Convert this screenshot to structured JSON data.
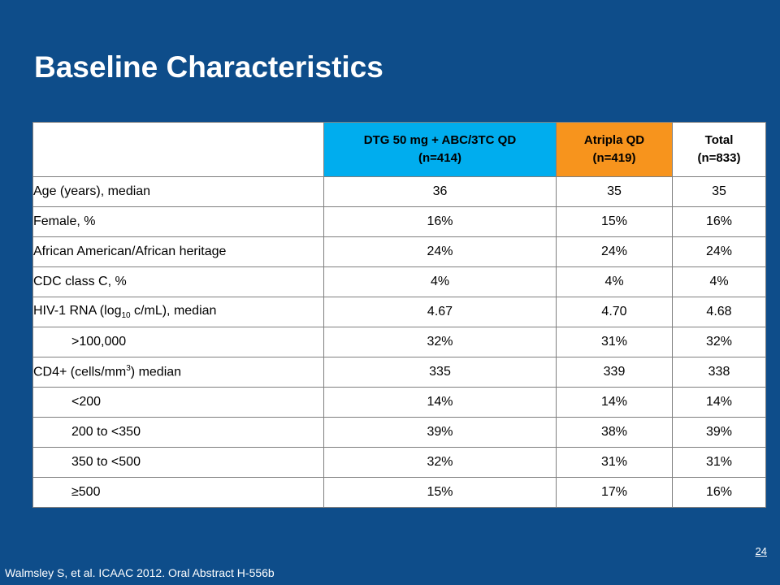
{
  "slide": {
    "title": "Baseline Characteristics",
    "footer": "Walmsley S, et al. ICAAC 2012. Oral Abstract H-556b",
    "page_number": "24"
  },
  "table": {
    "headers": [
      {
        "line1": "DTG 50 mg + ABC/3TC QD",
        "line2": "(n=414)"
      },
      {
        "line1": "Atripla QD",
        "line2": "(n=419)"
      },
      {
        "line1": "Total",
        "line2": "(n=833)"
      }
    ],
    "rows": [
      {
        "label": "Age (years), median",
        "values": [
          "36",
          "35",
          "35"
        ]
      },
      {
        "label": "Female, %",
        "values": [
          "16%",
          "15%",
          "16%"
        ]
      },
      {
        "label": "African American/African heritage",
        "values": [
          "24%",
          "24%",
          "24%"
        ]
      },
      {
        "label": "CDC class C, %",
        "values": [
          "4%",
          "4%",
          "4%"
        ]
      },
      {
        "label_pre": "HIV-1 RNA (log",
        "label_sub": "10",
        "label_post": " c/mL), median",
        "values": [
          "4.67",
          "4.70",
          "4.68"
        ]
      },
      {
        "label": ">100,000",
        "values": [
          "32%",
          "31%",
          "32%"
        ]
      },
      {
        "label_pre": "CD4+ (cells/mm",
        "label_sup": "3",
        "label_post": ") median",
        "values": [
          "335",
          "339",
          "338"
        ]
      },
      {
        "label": "<200",
        "values": [
          "14%",
          "14%",
          "14%"
        ]
      },
      {
        "label": "200 to <350",
        "values": [
          "39%",
          "38%",
          "39%"
        ]
      },
      {
        "label": "350 to <500",
        "values": [
          "32%",
          "31%",
          "31%"
        ]
      },
      {
        "label": "≥500",
        "values": [
          "15%",
          "17%",
          "16%"
        ]
      }
    ]
  },
  "colors": {
    "background": "#0e4d8a",
    "dtg_header": "#00adee",
    "atripla_header": "#f7941d"
  }
}
